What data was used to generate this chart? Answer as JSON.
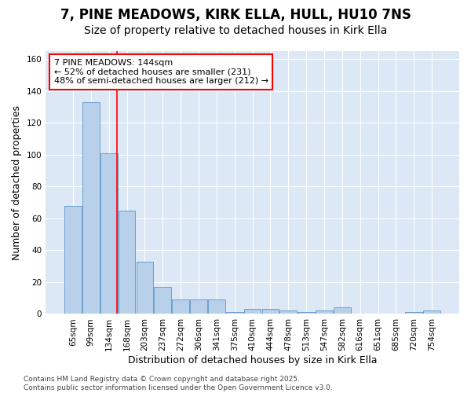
{
  "title": "7, PINE MEADOWS, KIRK ELLA, HULL, HU10 7NS",
  "subtitle": "Size of property relative to detached houses in Kirk Ella",
  "xlabel": "Distribution of detached houses by size in Kirk Ella",
  "ylabel": "Number of detached properties",
  "categories": [
    "65sqm",
    "99sqm",
    "134sqm",
    "168sqm",
    "203sqm",
    "237sqm",
    "272sqm",
    "306sqm",
    "341sqm",
    "375sqm",
    "410sqm",
    "444sqm",
    "478sqm",
    "513sqm",
    "547sqm",
    "582sqm",
    "616sqm",
    "651sqm",
    "685sqm",
    "720sqm",
    "754sqm"
  ],
  "values": [
    68,
    133,
    101,
    65,
    33,
    17,
    9,
    9,
    9,
    1,
    3,
    3,
    2,
    1,
    2,
    4,
    0,
    0,
    0,
    1,
    2
  ],
  "bar_color": "#b8d0ea",
  "bar_edge_color": "#6fa0cc",
  "annotation_text": "7 PINE MEADOWS: 144sqm\n← 52% of detached houses are smaller (231)\n48% of semi-detached houses are larger (212) →",
  "annotation_box_facecolor": "white",
  "annotation_box_edgecolor": "red",
  "vline_color": "red",
  "vline_x_index": 2.45,
  "ylim": [
    0,
    165
  ],
  "yticks": [
    0,
    20,
    40,
    60,
    80,
    100,
    120,
    140,
    160
  ],
  "background_color": "#ffffff",
  "plot_background_color": "#dce8f5",
  "grid_color": "#ffffff",
  "footer_text": "Contains HM Land Registry data © Crown copyright and database right 2025.\nContains public sector information licensed under the Open Government Licence v3.0.",
  "title_fontsize": 12,
  "subtitle_fontsize": 10,
  "axis_label_fontsize": 9,
  "tick_fontsize": 7.5,
  "annotation_fontsize": 8,
  "footer_fontsize": 6.5
}
